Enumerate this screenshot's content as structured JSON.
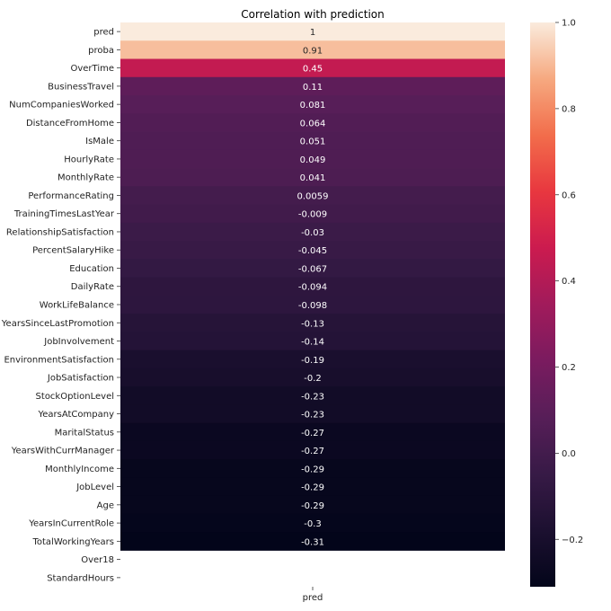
{
  "chart_data": {
    "type": "heatmap",
    "title": "Correlation with prediction",
    "columns": [
      "pred"
    ],
    "rows": [
      "pred",
      "proba",
      "OverTime",
      "BusinessTravel",
      "NumCompaniesWorked",
      "DistanceFromHome",
      "IsMale",
      "HourlyRate",
      "MonthlyRate",
      "PerformanceRating",
      "TrainingTimesLastYear",
      "RelationshipSatisfaction",
      "PercentSalaryHike",
      "Education",
      "DailyRate",
      "WorkLifeBalance",
      "YearsSinceLastPromotion",
      "JobInvolvement",
      "EnvironmentSatisfaction",
      "JobSatisfaction",
      "StockOptionLevel",
      "YearsAtCompany",
      "MaritalStatus",
      "YearsWithCurrManager",
      "MonthlyIncome",
      "JobLevel",
      "Age",
      "YearsInCurrentRole",
      "TotalWorkingYears",
      "Over18",
      "StandardHours"
    ],
    "values": [
      1,
      0.91,
      0.45,
      0.11,
      0.081,
      0.064,
      0.051,
      0.049,
      0.041,
      0.0059,
      -0.009,
      -0.03,
      -0.045,
      -0.067,
      -0.094,
      -0.098,
      -0.13,
      -0.14,
      -0.19,
      -0.2,
      -0.23,
      -0.23,
      -0.27,
      -0.27,
      -0.29,
      -0.29,
      -0.29,
      -0.3,
      -0.31,
      null,
      null
    ],
    "labels": [
      "1",
      "0.91",
      "0.45",
      "0.11",
      "0.081",
      "0.064",
      "0.051",
      "0.049",
      "0.041",
      "0.0059",
      "-0.009",
      "-0.03",
      "-0.045",
      "-0.067",
      "-0.094",
      "-0.098",
      "-0.13",
      "-0.14",
      "-0.19",
      "-0.2",
      "-0.23",
      "-0.23",
      "-0.27",
      "-0.27",
      "-0.29",
      "-0.29",
      "-0.29",
      "-0.3",
      "-0.31",
      "",
      ""
    ],
    "colorbar": {
      "range": [
        -0.31,
        1.0
      ],
      "ticks": [
        1.0,
        0.8,
        0.6,
        0.4,
        0.2,
        0.0,
        -0.2
      ],
      "tick_labels": [
        "1.0",
        "0.8",
        "0.6",
        "0.4",
        "0.2",
        "0.0",
        "−0.2"
      ],
      "colormap": "rocket"
    }
  }
}
